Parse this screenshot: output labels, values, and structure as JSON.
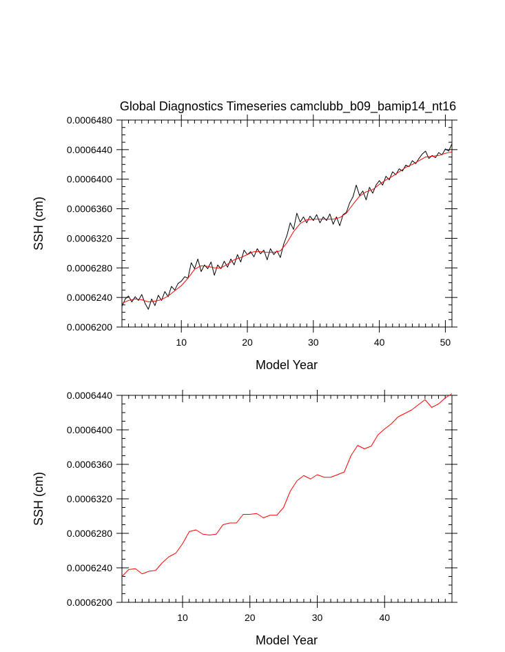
{
  "chart_data": [
    {
      "type": "line",
      "title": "Global Diagnostics Timeseries camclubb_b09_bamip14_nt16",
      "xlabel": "Model Year",
      "ylabel": "SSH (cm)",
      "xlim": [
        1,
        51
      ],
      "ylim": [
        0.00062,
        0.000648
      ],
      "x_ticks": [
        10,
        20,
        30,
        40,
        50
      ],
      "y_ticks": [
        "0.0006200",
        "0.0006240",
        "0.0006280",
        "0.0006320",
        "0.0006360",
        "0.0006400",
        "0.0006440",
        "0.0006480"
      ],
      "grid": false,
      "series": [
        {
          "color": "#000000",
          "x": [
            1.0,
            1.5,
            2.0,
            2.5,
            3.0,
            3.5,
            4.0,
            4.5,
            5.0,
            5.5,
            6.0,
            6.5,
            7.0,
            7.5,
            8.0,
            8.5,
            9.0,
            9.5,
            10.0,
            10.5,
            11.0,
            11.5,
            12.0,
            12.5,
            13.0,
            13.5,
            14.0,
            14.5,
            15.0,
            15.5,
            16.0,
            16.5,
            17.0,
            17.5,
            18.0,
            18.5,
            19.0,
            19.5,
            20.0,
            20.5,
            21.0,
            21.5,
            22.0,
            22.5,
            23.0,
            23.5,
            24.0,
            24.5,
            25.0,
            25.5,
            26.0,
            26.5,
            27.0,
            27.5,
            28.0,
            28.5,
            29.0,
            29.5,
            30.0,
            30.5,
            31.0,
            31.5,
            32.0,
            32.5,
            33.0,
            33.5,
            34.0,
            34.5,
            35.0,
            35.5,
            36.0,
            36.5,
            37.0,
            37.5,
            38.0,
            38.5,
            39.0,
            39.5,
            40.0,
            40.5,
            41.0,
            41.5,
            42.0,
            42.5,
            43.0,
            43.5,
            44.0,
            44.5,
            45.0,
            45.5,
            46.0,
            46.5,
            47.0,
            47.5,
            48.0,
            48.5,
            49.0,
            49.5,
            50.0,
            50.5,
            51.0
          ],
          "values": [
            0.0006228,
            0.0006238,
            0.0006242,
            0.0006234,
            0.0006241,
            0.0006236,
            0.0006244,
            0.0006232,
            0.0006224,
            0.0006238,
            0.0006229,
            0.0006243,
            0.0006236,
            0.0006248,
            0.0006241,
            0.0006255,
            0.000625,
            0.0006259,
            0.0006262,
            0.0006268,
            0.0006266,
            0.0006287,
            0.0006279,
            0.0006292,
            0.0006275,
            0.0006284,
            0.0006279,
            0.0006288,
            0.000627,
            0.0006284,
            0.0006279,
            0.0006289,
            0.0006281,
            0.0006292,
            0.0006284,
            0.0006298,
            0.0006288,
            0.0006304,
            0.0006298,
            0.0006302,
            0.0006295,
            0.0006306,
            0.0006299,
            0.0006304,
            0.0006291,
            0.0006306,
            0.0006298,
            0.0006303,
            0.0006294,
            0.0006312,
            0.0006324,
            0.0006341,
            0.0006332,
            0.0006354,
            0.0006342,
            0.0006349,
            0.0006341,
            0.000635,
            0.0006344,
            0.0006352,
            0.0006341,
            0.0006349,
            0.0006344,
            0.0006353,
            0.0006339,
            0.0006349,
            0.0006337,
            0.0006352,
            0.0006355,
            0.0006368,
            0.0006376,
            0.0006392,
            0.0006378,
            0.0006384,
            0.0006372,
            0.0006389,
            0.0006381,
            0.0006392,
            0.0006398,
            0.0006392,
            0.0006404,
            0.0006399,
            0.000641,
            0.0006406,
            0.0006414,
            0.0006411,
            0.0006419,
            0.0006417,
            0.0006425,
            0.0006421,
            0.0006428,
            0.0006434,
            0.0006438,
            0.0006428,
            0.0006432,
            0.0006429,
            0.0006436,
            0.0006433,
            0.0006441,
            0.0006438,
            0.0006448
          ]
        },
        {
          "color": "#ff0000",
          "x": [
            1,
            2,
            3,
            4,
            5,
            6,
            7,
            8,
            9,
            10,
            11,
            12,
            13,
            14,
            15,
            16,
            17,
            18,
            19,
            20,
            21,
            22,
            23,
            24,
            25,
            26,
            27,
            28,
            29,
            30,
            31,
            32,
            33,
            34,
            35,
            36,
            37,
            38,
            39,
            40,
            41,
            42,
            43,
            44,
            45,
            46,
            47,
            48,
            49,
            50,
            51
          ],
          "values": [
            0.0006232,
            0.0006236,
            0.0006238,
            0.0006237,
            0.0006234,
            0.0006235,
            0.0006237,
            0.0006242,
            0.0006249,
            0.0006256,
            0.0006266,
            0.0006278,
            0.0006283,
            0.0006282,
            0.000628,
            0.000628,
            0.0006285,
            0.0006291,
            0.0006294,
            0.0006298,
            0.0006302,
            0.0006302,
            0.0006301,
            0.0006301,
            0.0006303,
            0.0006314,
            0.0006329,
            0.000634,
            0.0006345,
            0.0006346,
            0.0006346,
            0.0006346,
            0.0006346,
            0.0006348,
            0.0006354,
            0.0006366,
            0.0006377,
            0.0006383,
            0.0006386,
            0.0006393,
            0.0006399,
            0.0006404,
            0.000641,
            0.0006416,
            0.000642,
            0.0006425,
            0.000643,
            0.0006431,
            0.0006432,
            0.0006435,
            0.0006437
          ]
        }
      ]
    },
    {
      "type": "line",
      "title": "",
      "xlabel": "Model Year",
      "ylabel": "SSH (cm)",
      "xlim": [
        1,
        50
      ],
      "ylim": [
        0.00062,
        0.000644
      ],
      "x_ticks": [
        10,
        20,
        30,
        40
      ],
      "y_ticks": [
        "0.0006200",
        "0.0006240",
        "0.0006280",
        "0.0006320",
        "0.0006360",
        "0.0006400",
        "0.0006440"
      ],
      "grid": false,
      "series": [
        {
          "color": "#ff0000",
          "x": [
            1,
            2,
            3,
            4,
            5,
            6,
            7,
            8,
            9,
            10,
            11,
            12,
            13,
            14,
            15,
            16,
            17,
            18,
            19,
            20,
            21,
            22,
            23,
            24,
            25,
            26,
            27,
            28,
            29,
            30,
            31,
            32,
            33,
            34,
            35,
            36,
            37,
            38,
            39,
            40,
            41,
            42,
            43,
            44,
            45,
            46,
            47,
            48,
            49,
            50
          ],
          "values": [
            0.000623,
            0.0006238,
            0.0006239,
            0.0006233,
            0.0006236,
            0.0006237,
            0.0006246,
            0.0006253,
            0.0006257,
            0.0006268,
            0.0006282,
            0.0006284,
            0.0006279,
            0.0006278,
            0.0006279,
            0.000629,
            0.0006292,
            0.0006292,
            0.0006302,
            0.0006302,
            0.0006303,
            0.0006298,
            0.0006301,
            0.0006301,
            0.000631,
            0.0006329,
            0.0006341,
            0.0006347,
            0.0006343,
            0.0006348,
            0.0006345,
            0.0006345,
            0.0006348,
            0.0006351,
            0.000637,
            0.0006382,
            0.0006378,
            0.0006381,
            0.0006394,
            0.0006401,
            0.0006407,
            0.0006415,
            0.0006419,
            0.0006423,
            0.0006429,
            0.0006435,
            0.0006426,
            0.000643,
            0.0006437,
            0.0006442
          ]
        }
      ]
    }
  ]
}
